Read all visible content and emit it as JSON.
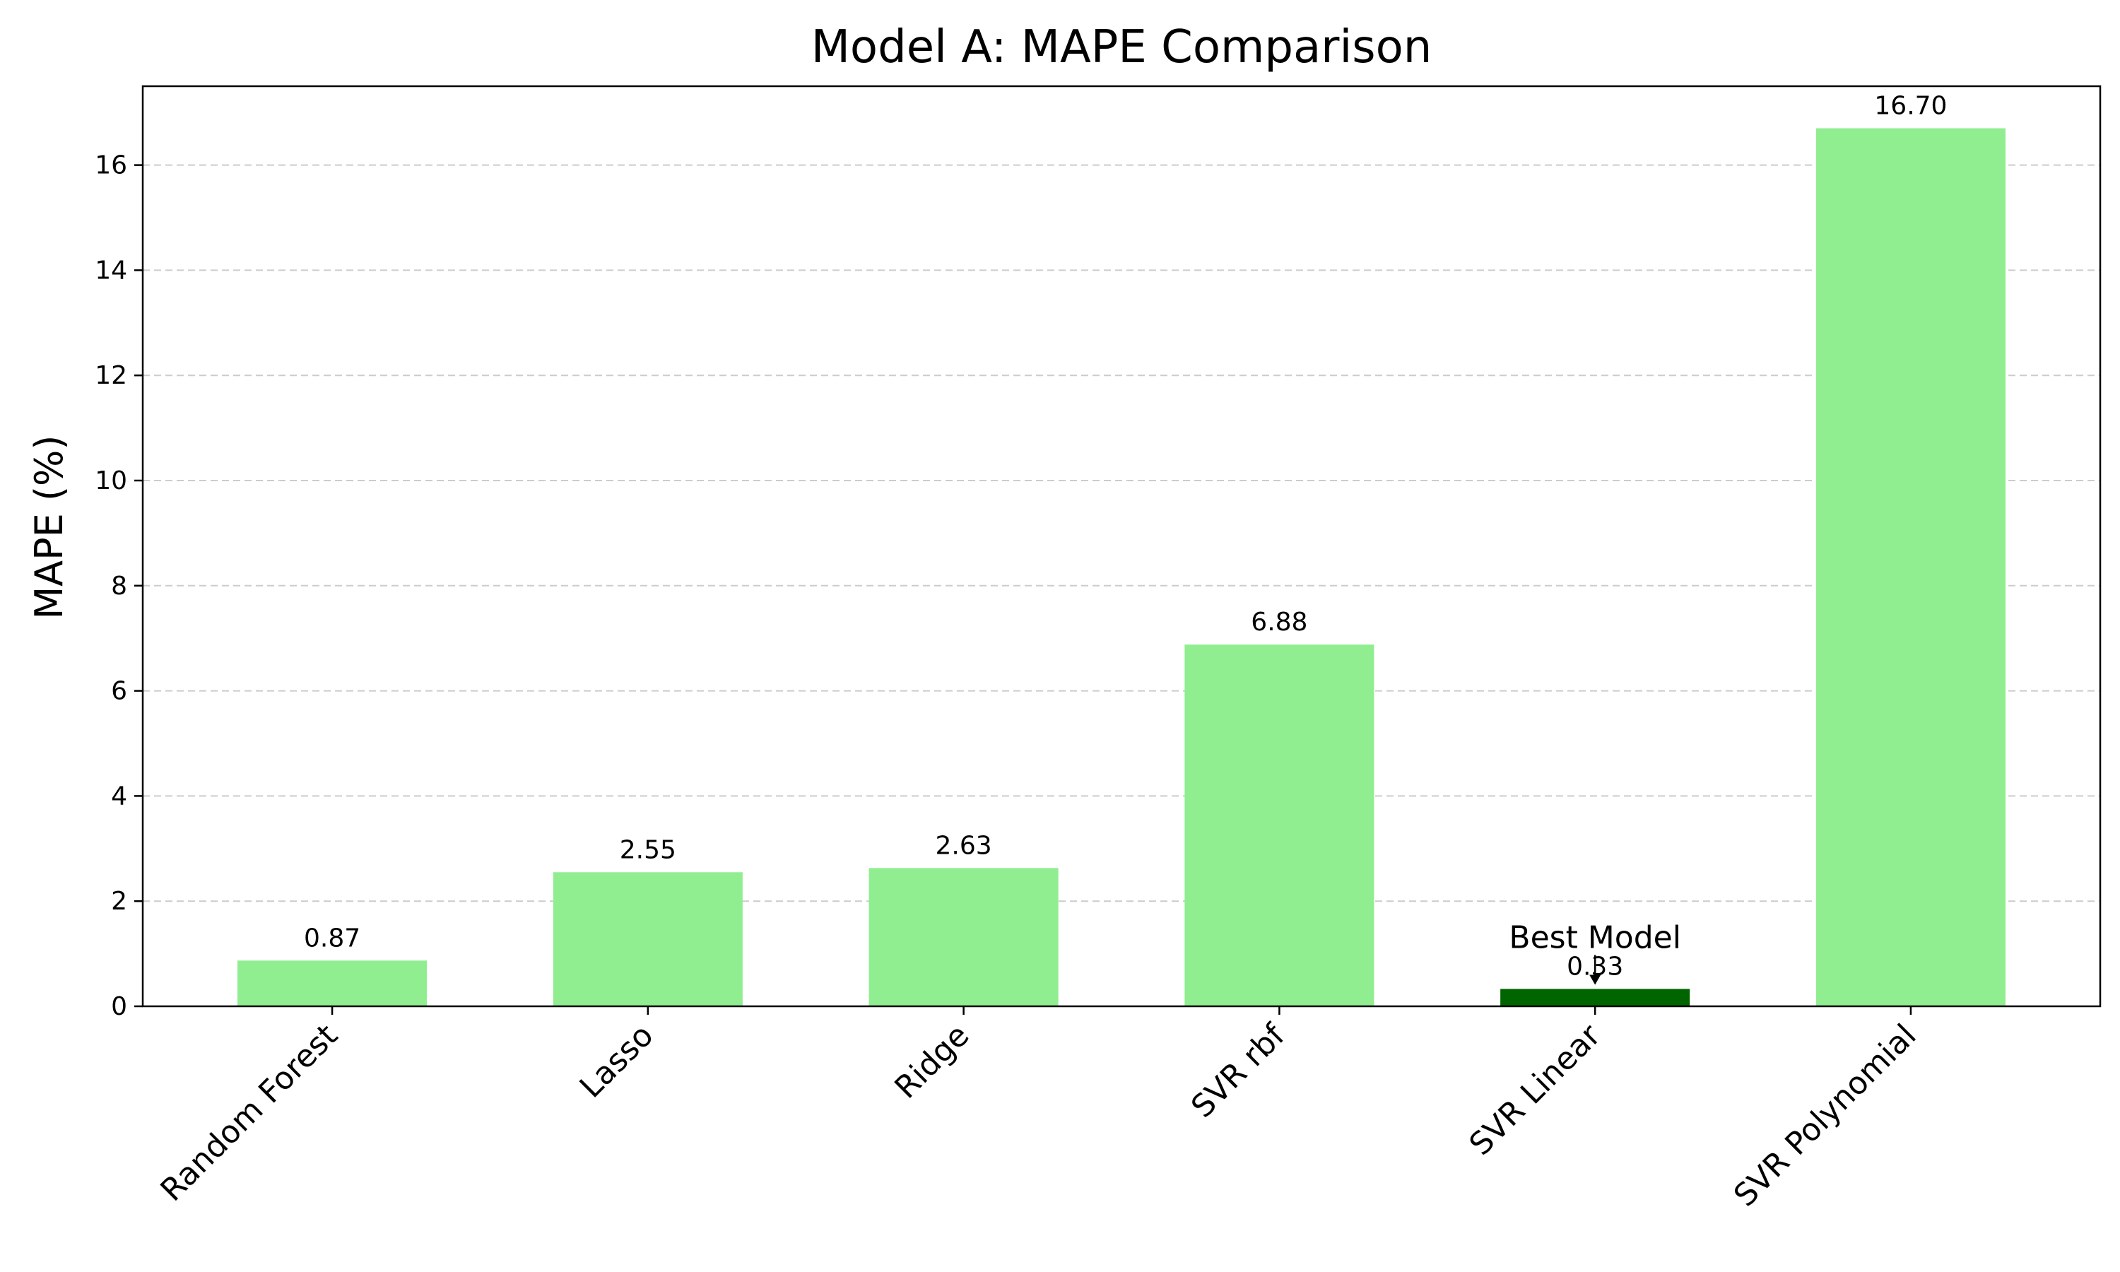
{
  "chart_data": {
    "type": "bar",
    "title": "Model A: MAPE Comparison",
    "xlabel": "",
    "ylabel": "MAPE (%)",
    "categories": [
      "Random Forest",
      "Lasso",
      "Ridge",
      "SVR rbf",
      "SVR Linear",
      "SVR Polynomial"
    ],
    "values": [
      0.87,
      2.55,
      2.63,
      6.88,
      0.33,
      16.7
    ],
    "value_labels": [
      "0.87",
      "2.55",
      "2.63",
      "6.88",
      "0.33",
      "16.70"
    ],
    "ylim": [
      0,
      17.5
    ],
    "yticks": [
      0,
      2,
      4,
      6,
      8,
      10,
      12,
      14,
      16
    ],
    "ytick_labels": [
      "0",
      "2",
      "4",
      "6",
      "8",
      "10",
      "12",
      "14",
      "16"
    ],
    "grid": "y-dashed",
    "colors": {
      "bar": "#90ee90",
      "best_bar": "#006400",
      "grid": "#cccccc"
    },
    "best_index": 4,
    "annotation": {
      "text": "Best Model",
      "category": "SVR Linear"
    }
  }
}
